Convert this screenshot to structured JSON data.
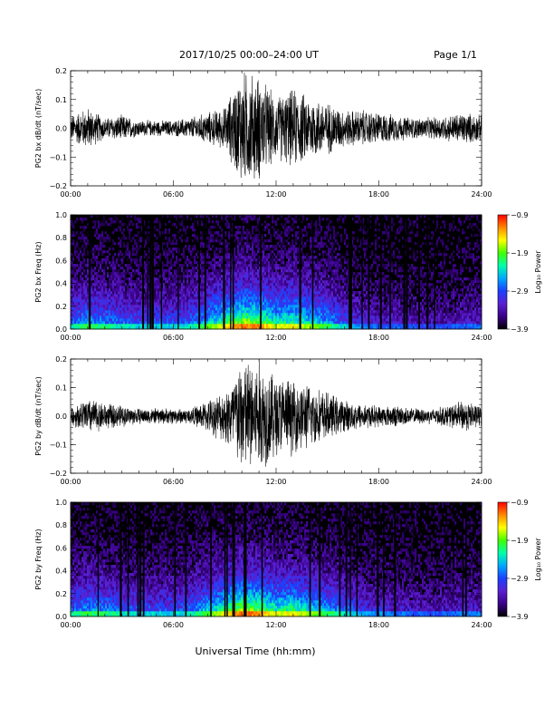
{
  "header": {
    "date_range": "2017/10/25  00:00–24:00 UT",
    "page": "Page 1/1"
  },
  "xlabel": "Universal Time (hh:mm)",
  "colorbar_label": "Log₁₀ Power",
  "colors": {
    "background": "#ffffff",
    "trace": "#000000",
    "spec_background": "#000000",
    "colormap": [
      "#000000",
      "#3a0088",
      "#5a20d0",
      "#1a40ff",
      "#00a8ff",
      "#00ffaa",
      "#40ff00",
      "#ffff00",
      "#ff8800",
      "#ff0000"
    ]
  },
  "chart_data": [
    {
      "type": "line",
      "ylabel": "PG2 bx dB/dt (nT/sec)",
      "xlim": [
        "00:00",
        "24:00"
      ],
      "ylim": [
        -0.2,
        0.2
      ],
      "x_ticks": [
        "00:00",
        "06:00",
        "12:00",
        "18:00",
        "24:00"
      ],
      "y_ticks": [
        "0.2",
        "0.1",
        "0.0",
        "−0.1",
        "−0.2"
      ],
      "series": [
        {
          "x_hours": [
            0,
            1,
            2,
            3,
            4,
            5,
            6,
            7,
            8,
            9,
            10,
            11,
            12,
            13,
            14,
            15,
            16,
            17,
            18,
            19,
            20,
            21,
            22,
            23,
            24
          ],
          "amplitude": [
            0.05,
            0.08,
            0.04,
            0.05,
            0.03,
            0.03,
            0.03,
            0.04,
            0.06,
            0.08,
            0.22,
            0.2,
            0.12,
            0.15,
            0.12,
            0.1,
            0.07,
            0.07,
            0.06,
            0.05,
            0.04,
            0.04,
            0.05,
            0.06,
            0.05
          ]
        }
      ]
    },
    {
      "type": "heatmap",
      "ylabel": "PG2 bx Freq (Hz)",
      "xlim": [
        "00:00",
        "24:00"
      ],
      "ylim": [
        0.0,
        1.0
      ],
      "x_ticks": [
        "00:00",
        "06:00",
        "12:00",
        "18:00",
        "24:00"
      ],
      "y_ticks": [
        "1.0",
        "0.8",
        "0.6",
        "0.4",
        "0.2",
        "0.0"
      ],
      "colorbar_ticks": [
        "−0.9",
        "−1.9",
        "−2.9",
        "−3.9"
      ],
      "colorbar_range": [
        -3.9,
        -0.9
      ],
      "activity": [
        0.45,
        0.55,
        0.5,
        0.45,
        0.4,
        0.4,
        0.4,
        0.45,
        0.6,
        0.75,
        0.9,
        0.85,
        0.7,
        0.75,
        0.65,
        0.55,
        0.4,
        0.3,
        0.25,
        0.25,
        0.22,
        0.2,
        0.22,
        0.25,
        0.25
      ]
    },
    {
      "type": "line",
      "ylabel": "PG2 by dB/dt (nT/sec)",
      "xlim": [
        "00:00",
        "24:00"
      ],
      "ylim": [
        -0.2,
        0.2
      ],
      "x_ticks": [
        "00:00",
        "06:00",
        "12:00",
        "18:00",
        "24:00"
      ],
      "y_ticks": [
        "0.2",
        "0.1",
        "0.0",
        "−0.1",
        "−0.2"
      ],
      "series": [
        {
          "x_hours": [
            0,
            1,
            2,
            3,
            4,
            5,
            6,
            7,
            8,
            9,
            10,
            11,
            12,
            13,
            14,
            15,
            16,
            17,
            18,
            19,
            20,
            21,
            22,
            23,
            24
          ],
          "amplitude": [
            0.03,
            0.07,
            0.05,
            0.04,
            0.03,
            0.03,
            0.03,
            0.03,
            0.06,
            0.1,
            0.22,
            0.22,
            0.16,
            0.14,
            0.12,
            0.09,
            0.06,
            0.05,
            0.04,
            0.04,
            0.03,
            0.03,
            0.04,
            0.06,
            0.04
          ]
        }
      ]
    },
    {
      "type": "heatmap",
      "ylabel": "PG2 by Freq (Hz)",
      "xlim": [
        "00:00",
        "24:00"
      ],
      "ylim": [
        0.0,
        1.0
      ],
      "x_ticks": [
        "00:00",
        "06:00",
        "12:00",
        "18:00",
        "24:00"
      ],
      "y_ticks": [
        "1.0",
        "0.8",
        "0.6",
        "0.4",
        "0.2",
        "0.0"
      ],
      "colorbar_ticks": [
        "−0.9",
        "−1.9",
        "−2.9",
        "−3.9"
      ],
      "colorbar_range": [
        -3.9,
        -0.9
      ],
      "activity": [
        0.45,
        0.55,
        0.5,
        0.45,
        0.4,
        0.4,
        0.4,
        0.45,
        0.6,
        0.75,
        0.9,
        0.85,
        0.7,
        0.75,
        0.65,
        0.55,
        0.45,
        0.35,
        0.3,
        0.28,
        0.25,
        0.22,
        0.25,
        0.28,
        0.28
      ]
    }
  ]
}
